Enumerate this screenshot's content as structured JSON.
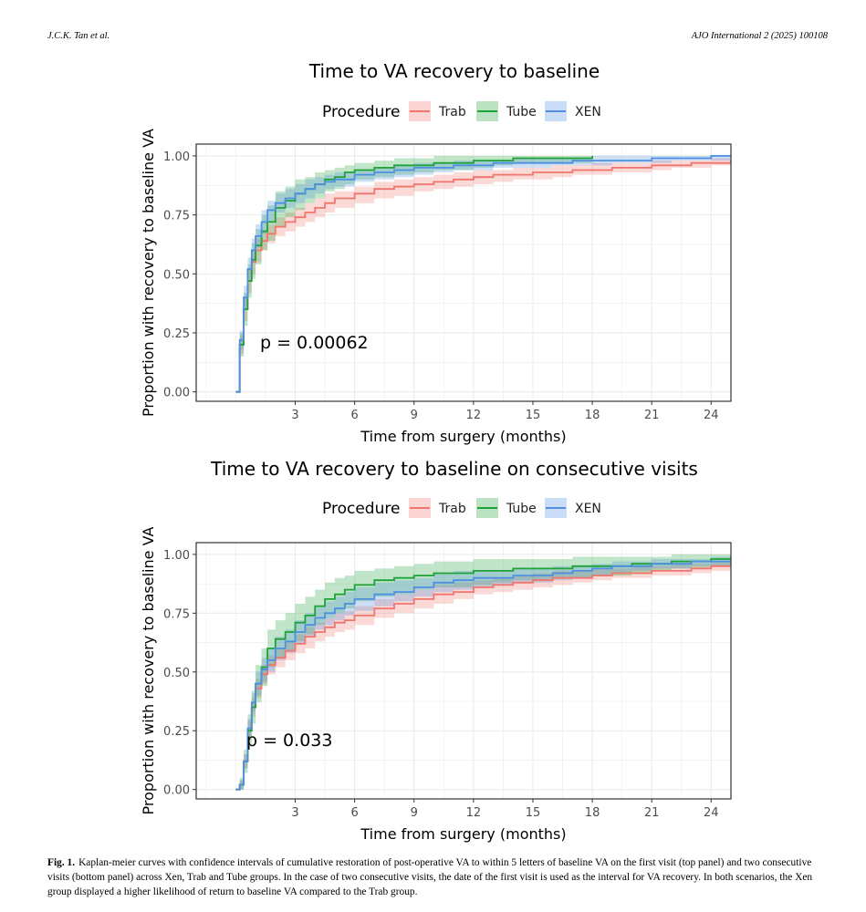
{
  "header": {
    "authors": "J.C.K. Tan et al.",
    "journal": "AJO International 2 (2025) 100108"
  },
  "caption": {
    "label": "Fig. 1.",
    "text": "Kaplan-meier curves with confidence intervals of cumulative restoration of post-operative VA to within 5 letters of baseline VA on the first visit (top panel) and two consecutive visits (bottom panel) across Xen, Trab and Tube groups. In the case of two consecutive visits, the date of the first visit is used as the interval for VA recovery. In both scenarios, the Xen group displayed a higher likelihood of return to baseline VA compared to the Trab group."
  },
  "colors": {
    "Trab": "#f0756c",
    "Tube": "#1fa238",
    "XEN": "#4f8fe0",
    "grid": "#ebebeb",
    "panel_border": "#333333"
  },
  "chart_data": [
    {
      "type": "line",
      "title": "Time to VA recovery to baseline",
      "xlabel": "Time from surgery (months)",
      "ylabel": "Proportion with recovery to baseline VA",
      "xlim": [
        -2,
        25
      ],
      "ylim": [
        -0.04,
        1.05
      ],
      "xticks": [
        3,
        6,
        9,
        12,
        15,
        18,
        21,
        24
      ],
      "yticks": [
        "0.00",
        "0.25",
        "0.50",
        "0.75",
        "1.00"
      ],
      "grid": true,
      "legend": {
        "title": "Procedure",
        "position": "top",
        "entries": [
          "Trab",
          "Tube",
          "XEN"
        ]
      },
      "annotation": "p = 0.00062",
      "step": true,
      "series": [
        {
          "name": "Trab",
          "x": [
            0,
            0.2,
            0.4,
            0.6,
            0.8,
            1.0,
            1.3,
            1.6,
            2.0,
            2.5,
            3,
            3.5,
            4,
            4.5,
            5,
            6,
            7,
            8,
            9,
            10,
            11,
            12,
            13,
            14,
            15,
            16,
            17,
            18,
            19,
            20,
            21,
            22,
            23,
            24,
            25
          ],
          "y": [
            0.0,
            0.2,
            0.35,
            0.47,
            0.55,
            0.6,
            0.64,
            0.67,
            0.7,
            0.72,
            0.74,
            0.76,
            0.78,
            0.8,
            0.82,
            0.84,
            0.86,
            0.87,
            0.88,
            0.89,
            0.9,
            0.91,
            0.92,
            0.92,
            0.93,
            0.93,
            0.94,
            0.94,
            0.95,
            0.95,
            0.96,
            0.96,
            0.97,
            0.97,
            0.98
          ],
          "lower": [
            0.0,
            0.16,
            0.3,
            0.42,
            0.5,
            0.55,
            0.6,
            0.63,
            0.66,
            0.68,
            0.7,
            0.72,
            0.74,
            0.76,
            0.78,
            0.8,
            0.82,
            0.83,
            0.85,
            0.86,
            0.87,
            0.88,
            0.89,
            0.9,
            0.9,
            0.91,
            0.92,
            0.92,
            0.93,
            0.93,
            0.94,
            0.95,
            0.95,
            0.96,
            0.96
          ],
          "upper": [
            0.0,
            0.24,
            0.4,
            0.52,
            0.6,
            0.65,
            0.68,
            0.71,
            0.74,
            0.76,
            0.78,
            0.8,
            0.82,
            0.84,
            0.85,
            0.87,
            0.89,
            0.9,
            0.91,
            0.92,
            0.93,
            0.94,
            0.94,
            0.95,
            0.95,
            0.96,
            0.96,
            0.97,
            0.97,
            0.97,
            0.98,
            0.98,
            0.98,
            0.99,
            0.99
          ]
        },
        {
          "name": "Tube",
          "x": [
            0,
            0.2,
            0.4,
            0.6,
            0.8,
            1.0,
            1.3,
            1.6,
            2.0,
            2.5,
            3,
            3.5,
            4,
            4.5,
            5,
            5.5,
            6,
            7,
            8,
            9,
            10,
            11,
            12,
            13,
            14,
            15,
            16,
            17,
            18
          ],
          "y": [
            0.0,
            0.2,
            0.35,
            0.47,
            0.56,
            0.62,
            0.68,
            0.72,
            0.78,
            0.81,
            0.84,
            0.86,
            0.88,
            0.9,
            0.91,
            0.93,
            0.94,
            0.95,
            0.96,
            0.96,
            0.97,
            0.97,
            0.98,
            0.98,
            0.99,
            0.99,
            0.99,
            0.99,
            1.0
          ],
          "lower": [
            0.0,
            0.15,
            0.28,
            0.4,
            0.48,
            0.54,
            0.6,
            0.64,
            0.7,
            0.74,
            0.77,
            0.8,
            0.82,
            0.85,
            0.86,
            0.88,
            0.9,
            0.91,
            0.92,
            0.93,
            0.94,
            0.94,
            0.95,
            0.96,
            0.97,
            0.97,
            0.97,
            0.97,
            0.98
          ],
          "upper": [
            0.0,
            0.25,
            0.42,
            0.54,
            0.63,
            0.69,
            0.75,
            0.79,
            0.85,
            0.87,
            0.9,
            0.91,
            0.93,
            0.94,
            0.95,
            0.96,
            0.97,
            0.98,
            0.99,
            0.99,
            1.0,
            1.0,
            1.0,
            1.0,
            1.0,
            1.0,
            1.0,
            1.0,
            1.0
          ]
        },
        {
          "name": "XEN",
          "x": [
            0,
            0.2,
            0.4,
            0.6,
            0.8,
            1.0,
            1.3,
            1.6,
            2.0,
            2.5,
            3,
            3.5,
            4,
            4.5,
            5,
            6,
            7,
            8,
            9,
            10,
            11,
            12,
            13,
            14,
            15,
            16,
            17,
            18,
            19,
            20,
            21,
            22,
            23,
            24,
            25
          ],
          "y": [
            0.0,
            0.22,
            0.4,
            0.52,
            0.6,
            0.66,
            0.72,
            0.77,
            0.8,
            0.82,
            0.84,
            0.86,
            0.88,
            0.89,
            0.9,
            0.92,
            0.93,
            0.94,
            0.95,
            0.95,
            0.96,
            0.96,
            0.97,
            0.97,
            0.97,
            0.97,
            0.98,
            0.98,
            0.98,
            0.98,
            0.99,
            0.99,
            0.99,
            1.0,
            1.0
          ],
          "lower": [
            0.0,
            0.18,
            0.35,
            0.47,
            0.55,
            0.61,
            0.67,
            0.72,
            0.76,
            0.78,
            0.8,
            0.82,
            0.84,
            0.86,
            0.87,
            0.89,
            0.9,
            0.91,
            0.92,
            0.93,
            0.94,
            0.94,
            0.95,
            0.95,
            0.95,
            0.96,
            0.96,
            0.96,
            0.97,
            0.97,
            0.97,
            0.98,
            0.98,
            0.98,
            0.98
          ],
          "upper": [
            0.0,
            0.26,
            0.45,
            0.57,
            0.65,
            0.71,
            0.77,
            0.81,
            0.84,
            0.86,
            0.88,
            0.9,
            0.91,
            0.92,
            0.93,
            0.94,
            0.95,
            0.96,
            0.97,
            0.97,
            0.98,
            0.98,
            0.98,
            0.99,
            0.99,
            0.99,
            0.99,
            1.0,
            1.0,
            1.0,
            1.0,
            1.0,
            1.0,
            1.0,
            1.0
          ]
        }
      ]
    },
    {
      "type": "line",
      "title": "Time to VA recovery to baseline on consecutive visits",
      "xlabel": "Time from surgery (months)",
      "ylabel": "Proportion with recovery to baseline VA",
      "xlim": [
        -2,
        25
      ],
      "ylim": [
        -0.04,
        1.05
      ],
      "xticks": [
        3,
        6,
        9,
        12,
        15,
        18,
        21,
        24
      ],
      "yticks": [
        "0.00",
        "0.25",
        "0.50",
        "0.75",
        "1.00"
      ],
      "grid": true,
      "legend": {
        "title": "Procedure",
        "position": "top",
        "entries": [
          "Trab",
          "Tube",
          "XEN"
        ]
      },
      "annotation": "p = 0.033",
      "step": true,
      "series": [
        {
          "name": "Trab",
          "x": [
            0,
            0.2,
            0.4,
            0.6,
            0.8,
            1.0,
            1.3,
            1.6,
            2.0,
            2.5,
            3,
            3.5,
            4,
            4.5,
            5,
            5.5,
            6,
            7,
            8,
            9,
            10,
            11,
            12,
            13,
            14,
            15,
            16,
            17,
            18,
            19,
            20,
            21,
            22,
            23,
            24,
            25
          ],
          "y": [
            0.0,
            0.02,
            0.12,
            0.25,
            0.35,
            0.43,
            0.49,
            0.53,
            0.56,
            0.59,
            0.62,
            0.65,
            0.67,
            0.69,
            0.71,
            0.72,
            0.74,
            0.77,
            0.79,
            0.81,
            0.83,
            0.84,
            0.86,
            0.87,
            0.88,
            0.89,
            0.9,
            0.9,
            0.91,
            0.92,
            0.92,
            0.93,
            0.93,
            0.94,
            0.95,
            0.95
          ],
          "lower": [
            0.0,
            0.0,
            0.09,
            0.21,
            0.31,
            0.39,
            0.45,
            0.49,
            0.52,
            0.55,
            0.58,
            0.6,
            0.63,
            0.65,
            0.67,
            0.68,
            0.7,
            0.73,
            0.75,
            0.77,
            0.79,
            0.81,
            0.83,
            0.84,
            0.85,
            0.86,
            0.87,
            0.88,
            0.89,
            0.9,
            0.9,
            0.91,
            0.91,
            0.92,
            0.93,
            0.93
          ],
          "upper": [
            0.0,
            0.04,
            0.15,
            0.29,
            0.39,
            0.47,
            0.53,
            0.57,
            0.6,
            0.63,
            0.66,
            0.69,
            0.71,
            0.73,
            0.75,
            0.76,
            0.78,
            0.81,
            0.83,
            0.85,
            0.87,
            0.88,
            0.89,
            0.9,
            0.91,
            0.92,
            0.93,
            0.93,
            0.94,
            0.94,
            0.95,
            0.95,
            0.96,
            0.96,
            0.97,
            0.97
          ]
        },
        {
          "name": "Tube",
          "x": [
            0,
            0.2,
            0.4,
            0.6,
            0.8,
            1.0,
            1.3,
            1.6,
            2.0,
            2.5,
            3,
            3.5,
            4,
            4.5,
            5,
            5.5,
            6,
            7,
            8,
            9,
            10,
            11,
            12,
            13,
            14,
            15,
            16,
            17,
            18,
            19,
            20,
            21,
            22,
            23,
            24,
            25
          ],
          "y": [
            0.0,
            0.02,
            0.12,
            0.25,
            0.35,
            0.45,
            0.52,
            0.6,
            0.64,
            0.67,
            0.71,
            0.74,
            0.78,
            0.81,
            0.83,
            0.85,
            0.87,
            0.89,
            0.9,
            0.91,
            0.92,
            0.92,
            0.93,
            0.93,
            0.94,
            0.94,
            0.94,
            0.95,
            0.95,
            0.95,
            0.96,
            0.96,
            0.97,
            0.97,
            0.98,
            0.99
          ],
          "lower": [
            0.0,
            0.0,
            0.07,
            0.18,
            0.28,
            0.37,
            0.44,
            0.52,
            0.56,
            0.59,
            0.63,
            0.66,
            0.7,
            0.73,
            0.75,
            0.77,
            0.8,
            0.82,
            0.83,
            0.85,
            0.86,
            0.86,
            0.87,
            0.88,
            0.89,
            0.89,
            0.9,
            0.9,
            0.91,
            0.91,
            0.92,
            0.93,
            0.94,
            0.94,
            0.95,
            0.96
          ],
          "upper": [
            0.0,
            0.05,
            0.17,
            0.32,
            0.42,
            0.53,
            0.6,
            0.68,
            0.72,
            0.75,
            0.79,
            0.82,
            0.85,
            0.88,
            0.9,
            0.91,
            0.93,
            0.94,
            0.95,
            0.96,
            0.97,
            0.97,
            0.98,
            0.98,
            0.98,
            0.98,
            0.98,
            0.99,
            0.99,
            0.99,
            0.99,
            0.99,
            1.0,
            1.0,
            1.0,
            1.0
          ]
        },
        {
          "name": "XEN",
          "x": [
            0,
            0.2,
            0.4,
            0.6,
            0.8,
            1.0,
            1.3,
            1.6,
            2.0,
            2.5,
            3,
            3.5,
            4,
            4.5,
            5,
            5.5,
            6,
            7,
            8,
            9,
            10,
            11,
            12,
            13,
            14,
            15,
            16,
            17,
            18,
            19,
            20,
            21,
            22,
            23,
            24,
            25
          ],
          "y": [
            0.0,
            0.02,
            0.12,
            0.26,
            0.37,
            0.45,
            0.51,
            0.55,
            0.6,
            0.63,
            0.67,
            0.7,
            0.73,
            0.75,
            0.77,
            0.79,
            0.81,
            0.83,
            0.84,
            0.86,
            0.88,
            0.89,
            0.9,
            0.9,
            0.91,
            0.91,
            0.92,
            0.93,
            0.94,
            0.95,
            0.95,
            0.96,
            0.96,
            0.97,
            0.97,
            0.98
          ],
          "lower": [
            0.0,
            0.0,
            0.09,
            0.22,
            0.33,
            0.4,
            0.46,
            0.5,
            0.55,
            0.58,
            0.62,
            0.65,
            0.68,
            0.7,
            0.72,
            0.74,
            0.76,
            0.78,
            0.8,
            0.82,
            0.84,
            0.85,
            0.86,
            0.87,
            0.88,
            0.88,
            0.89,
            0.9,
            0.91,
            0.92,
            0.93,
            0.94,
            0.94,
            0.95,
            0.95,
            0.96
          ],
          "upper": [
            0.0,
            0.04,
            0.15,
            0.3,
            0.41,
            0.5,
            0.56,
            0.6,
            0.65,
            0.68,
            0.72,
            0.75,
            0.78,
            0.8,
            0.82,
            0.84,
            0.86,
            0.88,
            0.89,
            0.9,
            0.92,
            0.93,
            0.93,
            0.93,
            0.94,
            0.94,
            0.95,
            0.95,
            0.96,
            0.97,
            0.97,
            0.98,
            0.98,
            0.98,
            0.99,
            0.99
          ]
        }
      ]
    }
  ]
}
